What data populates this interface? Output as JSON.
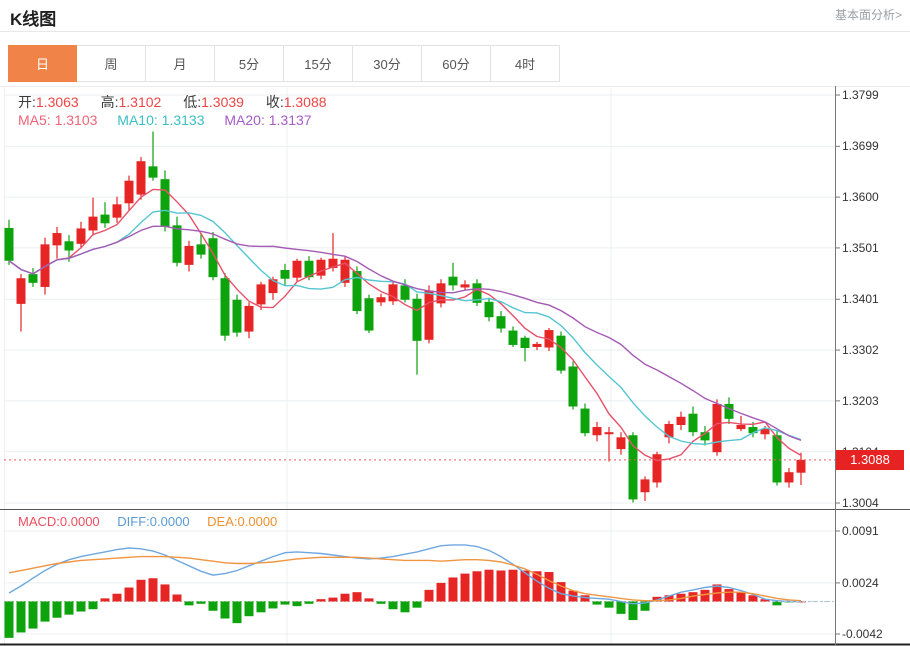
{
  "header": {
    "title": "K线图",
    "analysis_link": "基本面分析>"
  },
  "tabs": {
    "items": [
      {
        "label": "日",
        "active": true
      },
      {
        "label": "周",
        "active": false
      },
      {
        "label": "月",
        "active": false
      },
      {
        "label": "5分",
        "active": false
      },
      {
        "label": "15分",
        "active": false
      },
      {
        "label": "30分",
        "active": false
      },
      {
        "label": "60分",
        "active": false
      },
      {
        "label": "4时",
        "active": false
      }
    ]
  },
  "legend": {
    "ohlc": [
      {
        "label": "开:",
        "value": "1.3063"
      },
      {
        "label": "高:",
        "value": "1.3102"
      },
      {
        "label": "低:",
        "value": "1.3039"
      },
      {
        "label": "收:",
        "value": "1.3088"
      }
    ],
    "ma": [
      {
        "label": "MA5:",
        "value": "1.3103"
      },
      {
        "label": "MA10:",
        "value": "1.3133"
      },
      {
        "label": "MA20:",
        "value": "1.3137"
      }
    ]
  },
  "macd_legend": [
    {
      "label": "MACD:",
      "value": "0.0000"
    },
    {
      "label": "DIFF:",
      "value": "0.0000"
    },
    {
      "label": "DEA:",
      "value": "0.0000"
    }
  ],
  "price_axis": {
    "labels": [
      "1.3799",
      "1.3699",
      "1.3600",
      "1.3501",
      "1.3401",
      "1.3302",
      "1.3203",
      "1.3104",
      "1.3004"
    ],
    "current_price": "1.3088"
  },
  "macd_axis": {
    "labels": [
      "0.0091",
      "0.0024",
      "-0.0042"
    ]
  },
  "colors": {
    "up": "#e62525",
    "down": "#0ca30c",
    "ma5": "#e8506a",
    "ma10": "#55c5d2",
    "ma20": "#a55ab5",
    "diff_line": "#6fa8e0",
    "dea_line": "#f09540",
    "accent_tab": "#f08448",
    "badge_bg": "#e62222",
    "current_price_line": "#f25555",
    "grid": "#ebeff1",
    "axis_line": "#777"
  },
  "chart_data": {
    "type": "candlestick+macd",
    "title": "K线图 (daily K-line with MACD)",
    "price_ticks": [
      1.3799,
      1.3699,
      1.36,
      1.3501,
      1.3401,
      1.3302,
      1.3203,
      1.3104,
      1.3004
    ],
    "macd_ticks": [
      0.0091,
      0.0024,
      -0.0042
    ],
    "current_price": 1.3088,
    "last_candle_ohlc": {
      "open": 1.3063,
      "high": 1.3102,
      "low": 1.3039,
      "close": 1.3088
    },
    "ma_values": {
      "ma5": 1.3103,
      "ma10": 1.3133,
      "ma20": 1.3137
    },
    "macd_values": {
      "macd": 0.0,
      "diff": 0.0,
      "dea": 0.0
    },
    "candles": [
      [
        1.354,
        1.3556,
        1.3468,
        1.3476
      ],
      [
        1.3392,
        1.345,
        1.3338,
        1.3442
      ],
      [
        1.345,
        1.3462,
        1.3425,
        1.3433
      ],
      [
        1.3425,
        1.3521,
        1.341,
        1.3508
      ],
      [
        1.3506,
        1.3542,
        1.348,
        1.353
      ],
      [
        1.3514,
        1.3526,
        1.3474,
        1.3496
      ],
      [
        1.3509,
        1.3552,
        1.35,
        1.3539
      ],
      [
        1.3535,
        1.3599,
        1.3525,
        1.3562
      ],
      [
        1.3566,
        1.359,
        1.354,
        1.3549
      ],
      [
        1.356,
        1.3601,
        1.355,
        1.3586
      ],
      [
        1.3588,
        1.3642,
        1.3575,
        1.3632
      ],
      [
        1.3605,
        1.3678,
        1.3595,
        1.367
      ],
      [
        1.366,
        1.3728,
        1.3632,
        1.3638
      ],
      [
        1.3635,
        1.3652,
        1.3533,
        1.3542
      ],
      [
        1.3545,
        1.3562,
        1.3465,
        1.3472
      ],
      [
        1.3468,
        1.3515,
        1.3455,
        1.3505
      ],
      [
        1.3508,
        1.353,
        1.348,
        1.3488
      ],
      [
        1.352,
        1.3532,
        1.3438,
        1.3444
      ],
      [
        1.3442,
        1.3452,
        1.332,
        1.333
      ],
      [
        1.34,
        1.341,
        1.3328,
        1.3336
      ],
      [
        1.3338,
        1.3395,
        1.3325,
        1.3388
      ],
      [
        1.3391,
        1.3435,
        1.338,
        1.343
      ],
      [
        1.3413,
        1.3445,
        1.34,
        1.344
      ],
      [
        1.3458,
        1.347,
        1.3428,
        1.3441
      ],
      [
        1.3443,
        1.348,
        1.3435,
        1.3476
      ],
      [
        1.3476,
        1.3485,
        1.3438,
        1.3444
      ],
      [
        1.3447,
        1.3482,
        1.344,
        1.3478
      ],
      [
        1.3462,
        1.353,
        1.3455,
        1.348
      ],
      [
        1.3433,
        1.3485,
        1.3425,
        1.3478
      ],
      [
        1.3456,
        1.3465,
        1.3372,
        1.3378
      ],
      [
        1.3403,
        1.341,
        1.3335,
        1.334
      ],
      [
        1.3395,
        1.3412,
        1.3388,
        1.3405
      ],
      [
        1.3397,
        1.3435,
        1.339,
        1.343
      ],
      [
        1.3428,
        1.344,
        1.3395,
        1.34
      ],
      [
        1.3402,
        1.3412,
        1.3254,
        1.332
      ],
      [
        1.3322,
        1.3428,
        1.3315,
        1.3418
      ],
      [
        1.3393,
        1.344,
        1.3385,
        1.3432
      ],
      [
        1.3445,
        1.3472,
        1.3418,
        1.3428
      ],
      [
        1.3424,
        1.3438,
        1.342,
        1.343
      ],
      [
        1.3432,
        1.344,
        1.3388,
        1.3394
      ],
      [
        1.3396,
        1.3404,
        1.3358,
        1.3366
      ],
      [
        1.3368,
        1.3378,
        1.3336,
        1.3344
      ],
      [
        1.334,
        1.3348,
        1.3308,
        1.3312
      ],
      [
        1.3326,
        1.333,
        1.328,
        1.3306
      ],
      [
        1.3308,
        1.3318,
        1.3302,
        1.3314
      ],
      [
        1.3307,
        1.3345,
        1.33,
        1.3341
      ],
      [
        1.333,
        1.3338,
        1.3256,
        1.3262
      ],
      [
        1.327,
        1.328,
        1.3186,
        1.3192
      ],
      [
        1.3188,
        1.3198,
        1.3134,
        1.314
      ],
      [
        1.3136,
        1.3162,
        1.3124,
        1.3152
      ],
      [
        1.3138,
        1.3152,
        1.3085,
        1.3142
      ],
      [
        1.3109,
        1.3142,
        1.3098,
        1.3132
      ],
      [
        1.3136,
        1.3142,
        1.3005,
        1.3011
      ],
      [
        1.3025,
        1.3056,
        1.3008,
        1.305
      ],
      [
        1.3044,
        1.3104,
        1.3034,
        1.3099
      ],
      [
        1.3132,
        1.3164,
        1.312,
        1.3158
      ],
      [
        1.3156,
        1.3182,
        1.3146,
        1.3172
      ],
      [
        1.3178,
        1.3192,
        1.3134,
        1.3142
      ],
      [
        1.3142,
        1.3154,
        1.3116,
        1.3126
      ],
      [
        1.3103,
        1.3206,
        1.3096,
        1.3197
      ],
      [
        1.3197,
        1.321,
        1.3158,
        1.3168
      ],
      [
        1.3148,
        1.3174,
        1.3144,
        1.3156
      ],
      [
        1.3152,
        1.3162,
        1.3132,
        1.314
      ],
      [
        1.3138,
        1.3154,
        1.3128,
        1.3148
      ],
      [
        1.3136,
        1.3144,
        1.3038,
        1.3044
      ],
      [
        1.3044,
        1.3072,
        1.3034,
        1.3064
      ],
      [
        1.3063,
        1.3102,
        1.3039,
        1.3088
      ]
    ],
    "ma_windows": [
      5,
      10,
      20
    ],
    "macd": {
      "histogram": [
        -0.0047,
        -0.004,
        -0.0035,
        -0.0026,
        -0.0021,
        -0.0017,
        -0.0013,
        -0.001,
        0.0004,
        0.001,
        0.0018,
        0.0028,
        0.003,
        0.0022,
        0.0009,
        -0.0005,
        -0.0003,
        -0.0012,
        -0.0022,
        -0.0028,
        -0.0019,
        -0.0014,
        -0.0009,
        -0.0004,
        -0.0006,
        -0.0003,
        0.0003,
        0.0005,
        0.001,
        0.0012,
        0.0004,
        -0.0003,
        -0.001,
        -0.0014,
        -0.0008,
        0.0015,
        0.0024,
        0.0031,
        0.0036,
        0.0039,
        0.0041,
        0.004,
        0.0041,
        0.004,
        0.0039,
        0.0038,
        0.0025,
        0.0014,
        0.0008,
        -0.0004,
        -0.0008,
        -0.0016,
        -0.0024,
        -0.0012,
        0.0006,
        0.0008,
        0.001,
        0.0012,
        0.0015,
        0.0022,
        0.0016,
        0.0012,
        0.0008,
        0.0003,
        -0.0005,
        -0.0001,
        0.0
      ],
      "diff": [
        0.0011,
        0.002,
        0.003,
        0.004,
        0.0048,
        0.0054,
        0.0058,
        0.0061,
        0.0064,
        0.0067,
        0.0069,
        0.0068,
        0.0065,
        0.006,
        0.0053,
        0.0046,
        0.0039,
        0.0034,
        0.0036,
        0.004,
        0.0046,
        0.0052,
        0.0058,
        0.0063,
        0.0064,
        0.0063,
        0.0062,
        0.006,
        0.0058,
        0.0056,
        0.0055,
        0.0056,
        0.0058,
        0.0061,
        0.0064,
        0.0068,
        0.0072,
        0.0073,
        0.0073,
        0.0071,
        0.0066,
        0.0058,
        0.0048,
        0.0037,
        0.0026,
        0.0017,
        0.001,
        0.0007,
        0.0005,
        0.0004,
        0.0003,
        0.0,
        -0.0003,
        -0.0002,
        0.0002,
        0.0007,
        0.0012,
        0.0015,
        0.0018,
        0.002,
        0.0018,
        0.0014,
        0.0009,
        0.0003,
        0.0001,
        0.0,
        0.0
      ],
      "dea": [
        0.0037,
        0.004,
        0.0043,
        0.0046,
        0.0049,
        0.0051,
        0.0053,
        0.0054,
        0.0055,
        0.0056,
        0.0057,
        0.0058,
        0.0058,
        0.0058,
        0.0057,
        0.0056,
        0.0054,
        0.0052,
        0.005,
        0.0049,
        0.0049,
        0.005,
        0.0051,
        0.0053,
        0.0055,
        0.0056,
        0.0057,
        0.0057,
        0.0057,
        0.0057,
        0.0056,
        0.0055,
        0.0054,
        0.0053,
        0.0053,
        0.0053,
        0.0052,
        0.0053,
        0.0054,
        0.0054,
        0.0053,
        0.0051,
        0.0047,
        0.0042,
        0.0035,
        0.0027,
        0.002,
        0.0014,
        0.001,
        0.0008,
        0.0006,
        0.0004,
        0.0002,
        0.0001,
        0.0001,
        0.0002,
        0.0004,
        0.0007,
        0.0009,
        0.0011,
        0.0012,
        0.0012,
        0.001,
        0.0007,
        0.0004,
        0.0002,
        0.0001
      ]
    }
  }
}
